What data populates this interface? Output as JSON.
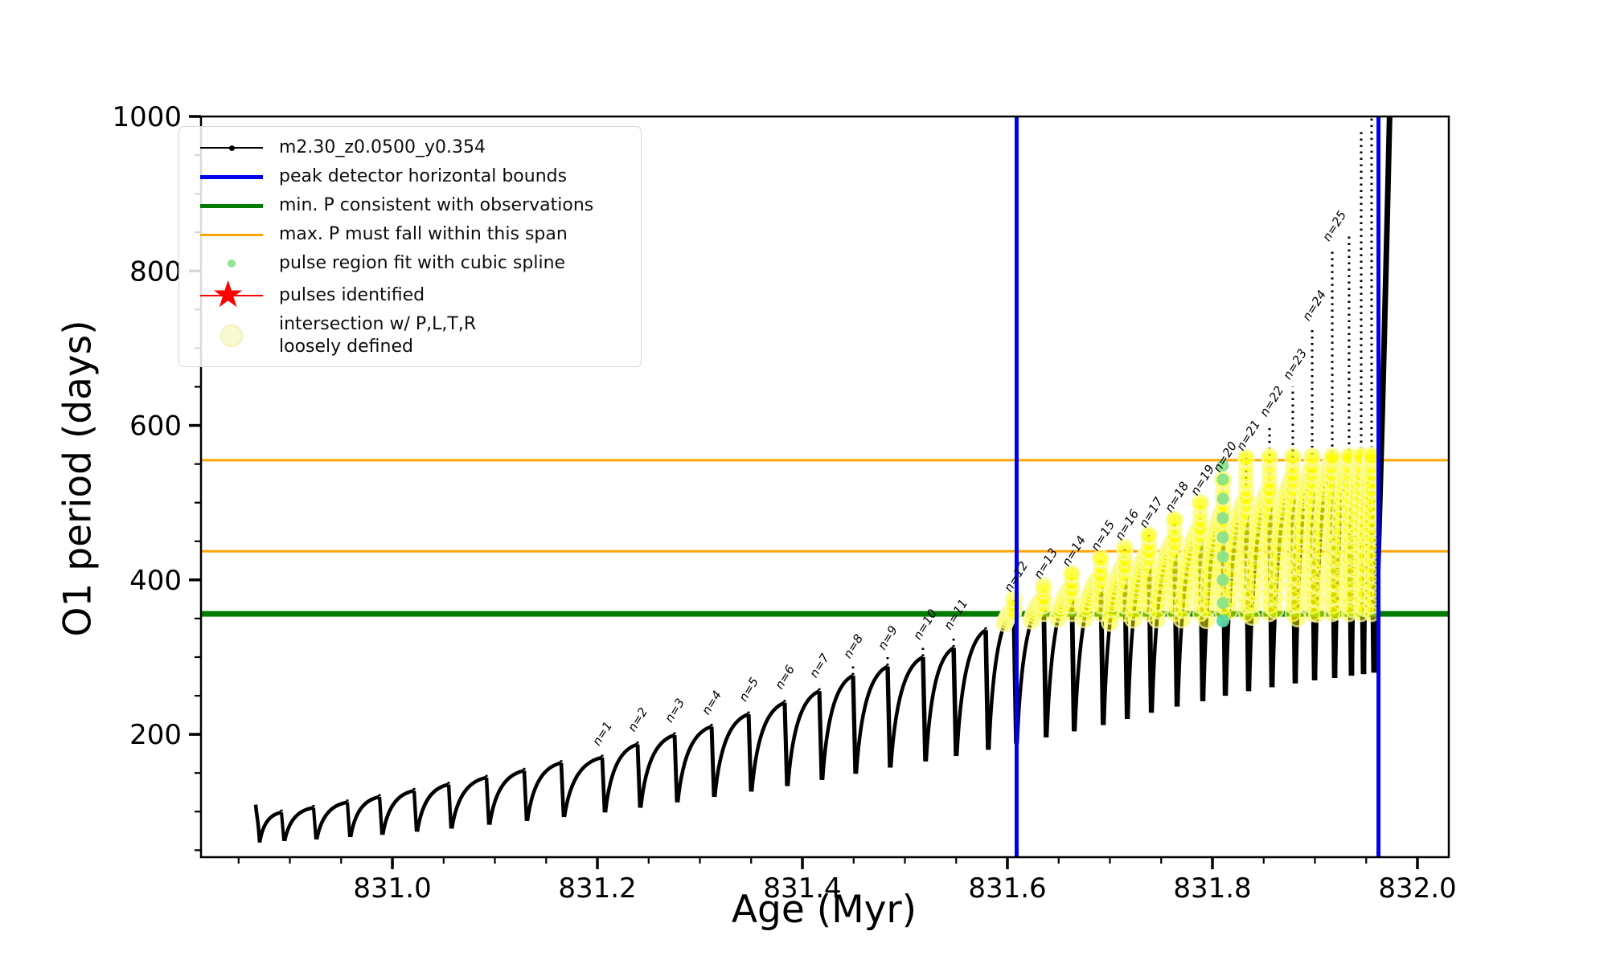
{
  "axes": {
    "xlabel": "Age (Myr)",
    "ylabel": "O1 period (days)",
    "x_tick_labels": [
      "831.0",
      "831.2",
      "831.4",
      "831.6",
      "831.8",
      "832.0"
    ],
    "y_tick_labels": [
      "200",
      "400",
      "600",
      "800",
      "1000"
    ]
  },
  "legend": {
    "items": [
      {
        "marker": "black-line-dot",
        "color": "#000000",
        "label": "m2.30_z0.0500_y0.354"
      },
      {
        "marker": "blue-line",
        "color": "#0000ee",
        "label": "peak detector horizontal bounds"
      },
      {
        "marker": "green-line",
        "color": "#007d00",
        "label": "min. P consistent with observations"
      },
      {
        "marker": "orange-line",
        "color": "#ffa500",
        "label": "max. P must fall within this span"
      },
      {
        "marker": "lightgreen-dot",
        "color": "#93e393",
        "label": "pulse region fit with cubic spline"
      },
      {
        "marker": "red-star",
        "color": "#ff0000",
        "label": "pulses identified"
      },
      {
        "marker": "yellow-dot",
        "color": "#fafad2",
        "label": "intersection w/ P,L,T,R\nloosely defined"
      }
    ]
  },
  "chart_data": {
    "type": "line",
    "title": "",
    "xlabel": "Age (Myr)",
    "ylabel": "O1 period (days)",
    "xlim": [
      830.8133,
      832.0306
    ],
    "ylim": [
      41,
      1000
    ],
    "x_major_ticks": [
      831.0,
      831.2,
      831.4,
      831.6,
      831.8,
      832.0
    ],
    "x_minor_step": 0.05,
    "y_major_ticks": [
      200,
      400,
      600,
      800,
      1000
    ],
    "y_minor_step": 50,
    "series_label": "m2.30_z0.0500_y0.354",
    "colors": {
      "track": "#000000",
      "peak_bounds": "#0000ee",
      "min_P": "#007d00",
      "max_P_span": "#ffa500",
      "spline_fit": "#8be28b",
      "pulses_identified": "#ff0000",
      "intersection": "#ffff00"
    },
    "peak_detector_bounds_age": [
      831.609,
      831.962
    ],
    "min_P_days": 356,
    "max_P_span_days": [
      437,
      555
    ],
    "intersection_window_days": [
      350,
      560
    ],
    "start_tail": {
      "age": 830.8666,
      "period": 109
    },
    "pulses": [
      {
        "label": "",
        "age": 830.8918,
        "spike": 104,
        "arch": 99,
        "min_before": 60
      },
      {
        "label": "",
        "age": 830.9231,
        "spike": 110,
        "arch": 105,
        "min_before": 62
      },
      {
        "label": "",
        "age": 830.9561,
        "spike": 117,
        "arch": 112,
        "min_before": 64
      },
      {
        "label": "",
        "age": 830.9875,
        "spike": 124,
        "arch": 119,
        "min_before": 67
      },
      {
        "label": "",
        "age": 831.0212,
        "spike": 132,
        "arch": 127,
        "min_before": 70
      },
      {
        "label": "",
        "age": 831.0549,
        "spike": 140,
        "arch": 135,
        "min_before": 74
      },
      {
        "label": "",
        "age": 831.0918,
        "spike": 149,
        "arch": 144,
        "min_before": 78
      },
      {
        "label": "",
        "age": 831.1286,
        "spike": 158,
        "arch": 153,
        "min_before": 83
      },
      {
        "label": "",
        "age": 831.1647,
        "spike": 168,
        "arch": 163,
        "min_before": 88
      },
      {
        "label": "n=1",
        "age": 831.2047,
        "spike": 176,
        "arch": 170,
        "min_before": 93
      },
      {
        "label": "n=2",
        "age": 831.2392,
        "spike": 194,
        "arch": 187,
        "min_before": 99
      },
      {
        "label": "n=3",
        "age": 831.2753,
        "spike": 206,
        "arch": 199,
        "min_before": 105
      },
      {
        "label": "n=4",
        "age": 831.3114,
        "spike": 216,
        "arch": 210,
        "min_before": 112
      },
      {
        "label": "n=5",
        "age": 831.3475,
        "spike": 233,
        "arch": 226,
        "min_before": 119
      },
      {
        "label": "n=6",
        "age": 831.3827,
        "spike": 249,
        "arch": 241,
        "min_before": 126
      },
      {
        "label": "n=7",
        "age": 831.4165,
        "spike": 264,
        "arch": 256,
        "min_before": 133
      },
      {
        "label": "n=8",
        "age": 831.4494,
        "spike": 289,
        "arch": 276,
        "min_before": 141
      },
      {
        "label": "n=9",
        "age": 831.4831,
        "spike": 300,
        "arch": 288,
        "min_before": 149
      },
      {
        "label": "n=10",
        "age": 831.5176,
        "spike": 313,
        "arch": 300,
        "min_before": 157
      },
      {
        "label": "n=11",
        "age": 831.5475,
        "spike": 326,
        "arch": 312,
        "min_before": 165
      },
      {
        "label": "",
        "age": 831.5788,
        "spike": 340,
        "arch": 335,
        "min_before": 172
      },
      {
        "label": "n=12",
        "age": 831.6063,
        "spike": 375,
        "arch": 362,
        "min_before": 180
      },
      {
        "label": "n=13",
        "age": 831.6353,
        "spike": 392,
        "arch": 375,
        "min_before": 188
      },
      {
        "label": "n=14",
        "age": 831.6627,
        "spike": 408,
        "arch": 390,
        "min_before": 196
      },
      {
        "label": "n=15",
        "age": 831.691,
        "spike": 428,
        "arch": 405,
        "min_before": 204
      },
      {
        "label": "n=16",
        "age": 831.7145,
        "spike": 442,
        "arch": 420,
        "min_before": 212
      },
      {
        "label": "n=17",
        "age": 831.738,
        "spike": 458,
        "arch": 438,
        "min_before": 220
      },
      {
        "label": "n=18",
        "age": 831.7631,
        "spike": 478,
        "arch": 452,
        "min_before": 228
      },
      {
        "label": "n=19",
        "age": 831.7882,
        "spike": 500,
        "arch": 468,
        "min_before": 236
      },
      {
        "label": "n=20",
        "age": 831.8102,
        "spike": 530,
        "arch": 488,
        "min_before": 243
      },
      {
        "label": "n=21",
        "age": 831.8329,
        "spike": 558,
        "arch": 505,
        "min_before": 250
      },
      {
        "label": "n=22",
        "age": 831.8557,
        "spike": 602,
        "arch": 518,
        "min_before": 256
      },
      {
        "label": "n=23",
        "age": 831.8784,
        "spike": 650,
        "arch": 532,
        "min_before": 261
      },
      {
        "label": "n=24",
        "age": 831.8973,
        "spike": 726,
        "arch": 545,
        "min_before": 266
      },
      {
        "label": "n=25",
        "age": 831.9169,
        "spike": 829,
        "arch": 555,
        "min_before": 270
      },
      {
        "label": "",
        "age": 831.9333,
        "spike": 845,
        "arch": 558,
        "min_before": 273
      },
      {
        "label": "",
        "age": 831.9451,
        "spike": 985,
        "arch": 560,
        "min_before": 276
      },
      {
        "label": "",
        "age": 831.9553,
        "spike": 1020,
        "arch": 561,
        "min_before": 278
      }
    ],
    "final_rise": {
      "age_start": 831.9576,
      "period_start": 280,
      "age_end": 831.973,
      "period_end": 1010
    },
    "spline_fit_dots": {
      "age": 831.8102,
      "periods": [
        370,
        400,
        430,
        455,
        480,
        505,
        530,
        548
      ]
    },
    "spline_fit_dot_low": {
      "age": 831.8102,
      "period": 347
    }
  }
}
